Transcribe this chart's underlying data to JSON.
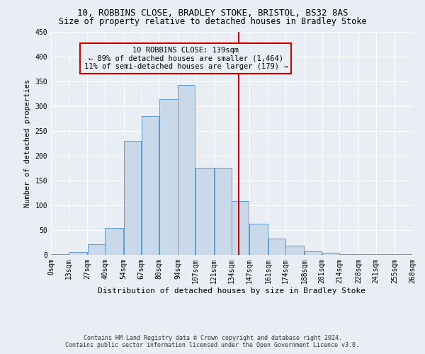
{
  "title1": "10, ROBBINS CLOSE, BRADLEY STOKE, BRISTOL, BS32 8AS",
  "title2": "Size of property relative to detached houses in Bradley Stoke",
  "xlabel": "Distribution of detached houses by size in Bradley Stoke",
  "ylabel": "Number of detached properties",
  "footer1": "Contains HM Land Registry data © Crown copyright and database right 2024.",
  "footer2": "Contains public sector information licensed under the Open Government Licence v3.0.",
  "annotation_line1": "10 ROBBINS CLOSE: 139sqm",
  "annotation_line2": "← 89% of detached houses are smaller (1,464)",
  "annotation_line3": "11% of semi-detached houses are larger (179) →",
  "vline_x": 139,
  "bar_edges": [
    0,
    13,
    27,
    40,
    54,
    67,
    80,
    94,
    107,
    121,
    134,
    147,
    161,
    174,
    188,
    201,
    214,
    228,
    241,
    255,
    268
  ],
  "bar_values": [
    2,
    6,
    22,
    55,
    230,
    280,
    315,
    343,
    176,
    176,
    108,
    63,
    33,
    18,
    7,
    4,
    2,
    1,
    2,
    1
  ],
  "bar_color": "#c9d9ea",
  "bar_edge_color": "#5b9bd5",
  "vline_color": "#cc0000",
  "bg_color": "#e8eef4",
  "grid_color": "#ffffff",
  "ylim": [
    0,
    450
  ],
  "yticks": [
    0,
    50,
    100,
    150,
    200,
    250,
    300,
    350,
    400,
    450
  ],
  "title1_fontsize": 9,
  "title2_fontsize": 8.5,
  "xlabel_fontsize": 8,
  "ylabel_fontsize": 7.5,
  "tick_fontsize": 7,
  "footer_fontsize": 6,
  "ann_fontsize": 7.5
}
